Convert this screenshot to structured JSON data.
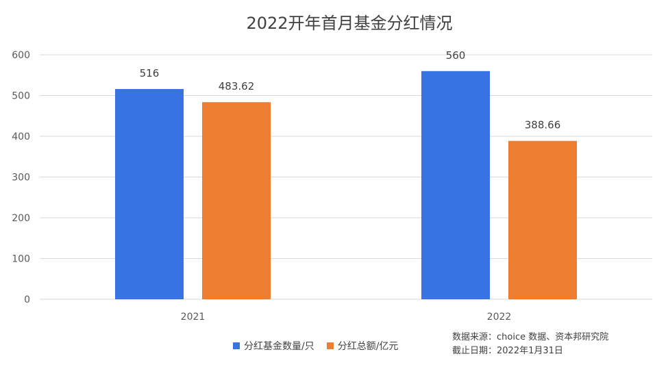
{
  "chart_data": {
    "type": "bar",
    "title": "2022开年首月基金分红情况",
    "categories": [
      "2021",
      "2022"
    ],
    "series": [
      {
        "name": "分红基金数量/只",
        "values": [
          516,
          560
        ],
        "color": "#3873e4"
      },
      {
        "name": "分红总额/亿元",
        "values": [
          483.62,
          388.66
        ],
        "color": "#ed7d31"
      }
    ],
    "data_labels": [
      [
        "516",
        "560"
      ],
      [
        "483.62",
        "388.66"
      ]
    ],
    "ylim": [
      0,
      600
    ],
    "yticks": [
      0,
      100,
      200,
      300,
      400,
      500,
      600
    ],
    "grid": true,
    "legend_position": "bottom"
  },
  "source": {
    "line1": "数据来源：choice 数据、资本邦研究院",
    "line2": "截止日期：2022年1月31日"
  }
}
